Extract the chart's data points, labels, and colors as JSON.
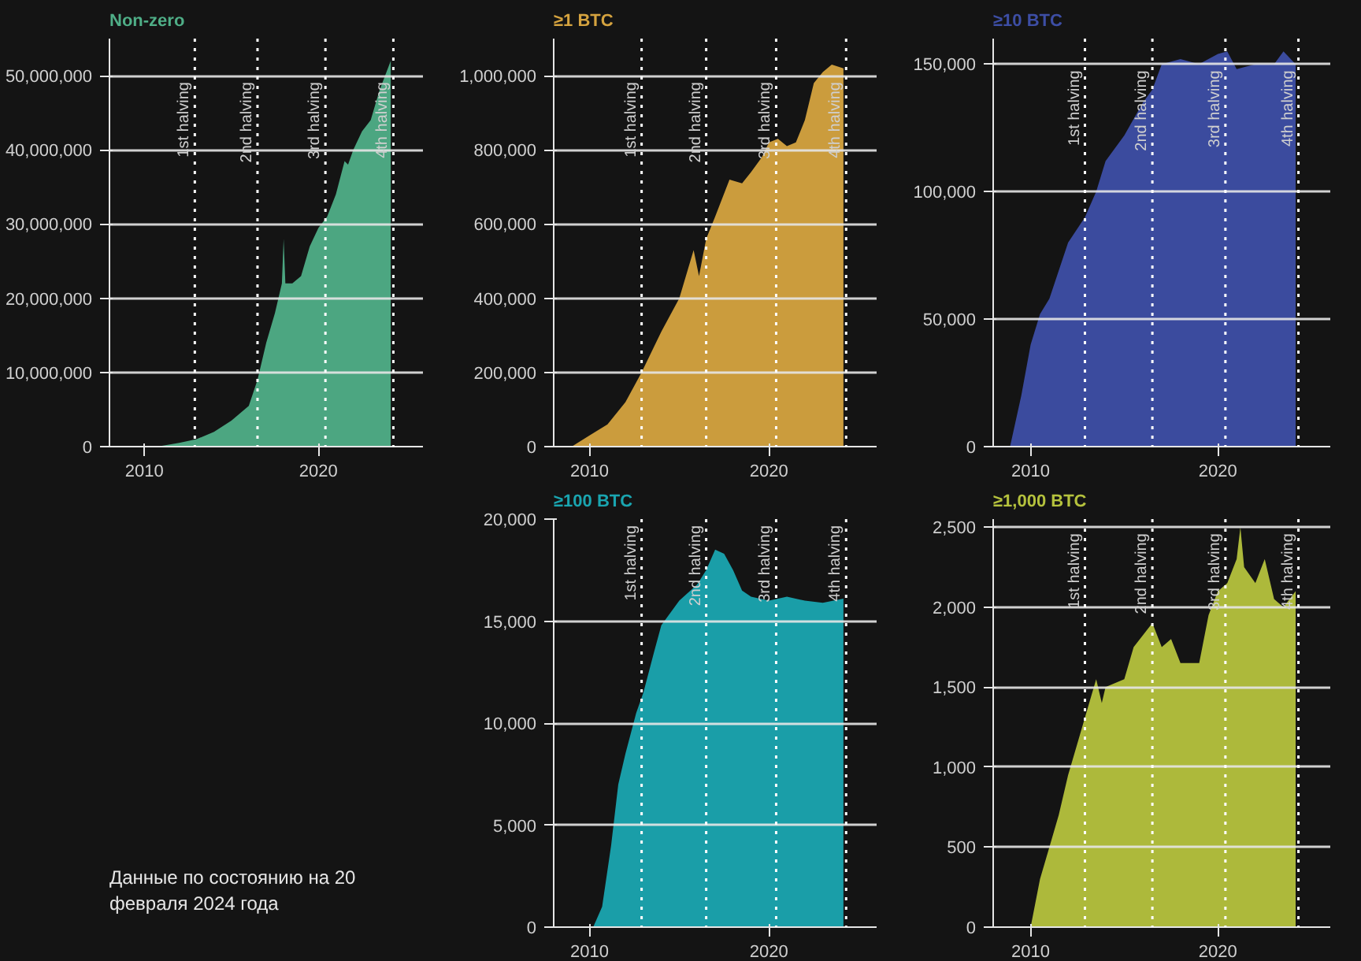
{
  "chart_data": [
    {
      "type": "area",
      "title": "Non-zero",
      "xlim": [
        2008,
        2026
      ],
      "xticks": [
        2010,
        2020
      ],
      "ylim": [
        0,
        55000000
      ],
      "yticks": [
        0,
        {
          "value": 10000000,
          "label": "10,000,000"
        },
        {
          "value": 20000000,
          "label": "20,000,000"
        },
        {
          "value": 30000000,
          "label": "30,000,000"
        },
        {
          "value": 40000000,
          "label": "40,000,000"
        },
        {
          "value": 50000000,
          "label": "50,000,000"
        }
      ],
      "grid": "y",
      "series": [
        {
          "color": "#4fae87",
          "x": [
            2009,
            2011,
            2012,
            2013,
            2014,
            2015,
            2016,
            2016.5,
            2017,
            2017.5,
            2017.9,
            2018.0,
            2018.1,
            2018.5,
            2019,
            2019.5,
            2020,
            2020.5,
            2021,
            2021.5,
            2021.7,
            2022,
            2022.5,
            2023,
            2023.5,
            2024.15
          ],
          "values": [
            0,
            100000,
            500000,
            1000000,
            2000000,
            3500000,
            5500000,
            9000000,
            14000000,
            18000000,
            22000000,
            28000000,
            22000000,
            22000000,
            23000000,
            27000000,
            29500000,
            31000000,
            34000000,
            38500000,
            38000000,
            40000000,
            42500000,
            44000000,
            48000000,
            52000000
          ]
        }
      ],
      "ref_lines": [
        {
          "axis": "x",
          "value": 2012.9,
          "label": "1st halving",
          "line_style": "dotted"
        },
        {
          "axis": "x",
          "value": 2016.5,
          "label": "2nd halving",
          "line_style": "dotted"
        },
        {
          "axis": "x",
          "value": 2020.4,
          "label": "3rd halving",
          "line_style": "dotted"
        },
        {
          "axis": "x",
          "value": 2024.3,
          "label": "4th halving",
          "line_style": "dotted"
        }
      ]
    },
    {
      "type": "area",
      "title": "≥1 BTC",
      "xlim": [
        2008,
        2026
      ],
      "xticks": [
        2010,
        2020
      ],
      "ylim": [
        0,
        1100000
      ],
      "yticks": [
        0,
        {
          "value": 200000,
          "label": "200,000"
        },
        {
          "value": 400000,
          "label": "400,000"
        },
        {
          "value": 600000,
          "label": "600,000"
        },
        {
          "value": 800000,
          "label": "800,000"
        },
        {
          "value": 1000000,
          "label": "1,000,000"
        }
      ],
      "grid": "y",
      "series": [
        {
          "color": "#d5a33f",
          "x": [
            2009,
            2010,
            2011,
            2012,
            2012.9,
            2014,
            2015,
            2015.8,
            2016.1,
            2016.5,
            2017,
            2017.8,
            2018.5,
            2019,
            2019.6,
            2020,
            2020.5,
            2021,
            2021.5,
            2022,
            2022.5,
            2023,
            2023.5,
            2024.15
          ],
          "values": [
            0,
            30000,
            60000,
            120000,
            200000,
            310000,
            400000,
            530000,
            460000,
            560000,
            620000,
            720000,
            710000,
            740000,
            780000,
            820000,
            830000,
            810000,
            820000,
            880000,
            980000,
            1010000,
            1030000,
            1020000
          ]
        }
      ],
      "ref_lines": [
        {
          "axis": "x",
          "value": 2012.9,
          "label": "1st halving",
          "line_style": "dotted"
        },
        {
          "axis": "x",
          "value": 2016.5,
          "label": "2nd halving",
          "line_style": "dotted"
        },
        {
          "axis": "x",
          "value": 2020.4,
          "label": "3rd halving",
          "line_style": "dotted"
        },
        {
          "axis": "x",
          "value": 2024.3,
          "label": "4th halving",
          "line_style": "dotted"
        }
      ]
    },
    {
      "type": "area",
      "title": "≥10 BTC",
      "xlim": [
        2008,
        2026
      ],
      "xticks": [
        2010,
        2020
      ],
      "ylim": [
        0,
        160000
      ],
      "yticks": [
        0,
        {
          "value": 50000,
          "label": "50,000"
        },
        {
          "value": 100000,
          "label": "100,000"
        },
        {
          "value": 150000,
          "label": "150,000"
        }
      ],
      "grid": "y",
      "series": [
        {
          "color": "#3d4ea5",
          "x": [
            2008.9,
            2009.5,
            2010,
            2010.5,
            2011,
            2012,
            2012.9,
            2013.5,
            2014,
            2015,
            2016,
            2016.5,
            2017,
            2018,
            2019,
            2020,
            2020.5,
            2021,
            2022,
            2023,
            2023.5,
            2024.15
          ],
          "values": [
            0,
            20000,
            40000,
            52000,
            58000,
            80000,
            90000,
            100000,
            112000,
            122000,
            135000,
            140000,
            150000,
            152000,
            150000,
            154000,
            155000,
            148000,
            150000,
            150000,
            155000,
            150000
          ]
        }
      ],
      "ref_lines": [
        {
          "axis": "x",
          "value": 2012.9,
          "label": "1st halving",
          "line_style": "dotted"
        },
        {
          "axis": "x",
          "value": 2016.5,
          "label": "2nd halving",
          "line_style": "dotted"
        },
        {
          "axis": "x",
          "value": 2020.4,
          "label": "3rd halving",
          "line_style": "dotted"
        },
        {
          "axis": "x",
          "value": 2024.3,
          "label": "4th halving",
          "line_style": "dotted"
        }
      ]
    },
    {
      "type": "area",
      "title": "≥100 BTC",
      "xlim": [
        2008,
        2026
      ],
      "xticks": [
        2010,
        2020
      ],
      "ylim": [
        0,
        20000
      ],
      "yticks": [
        0,
        {
          "value": 5000,
          "label": "5,000"
        },
        {
          "value": 10000,
          "label": "10,000"
        },
        {
          "value": 15000,
          "label": "15,000"
        },
        {
          "value": 20000,
          "label": "20,000"
        }
      ],
      "grid": "y",
      "series": [
        {
          "color": "#1aa5b0",
          "x": [
            2009,
            2010.2,
            2010.7,
            2011.2,
            2011.6,
            2012,
            2012.6,
            2013,
            2013.6,
            2014,
            2015,
            2016,
            2016.5,
            2017,
            2017.5,
            2018,
            2018.5,
            2019,
            2020,
            2021,
            2022,
            2023,
            2024.15
          ],
          "values": [
            0,
            0,
            1000,
            4000,
            7000,
            8500,
            10500,
            11500,
            13500,
            14800,
            16000,
            16800,
            17500,
            18500,
            18300,
            17500,
            16500,
            16200,
            16000,
            16200,
            16000,
            15900,
            16100
          ]
        }
      ],
      "ref_lines": [
        {
          "axis": "x",
          "value": 2012.9,
          "label": "1st halving",
          "line_style": "dotted"
        },
        {
          "axis": "x",
          "value": 2016.5,
          "label": "2nd halving",
          "line_style": "dotted"
        },
        {
          "axis": "x",
          "value": 2020.4,
          "label": "3rd halving",
          "line_style": "dotted"
        },
        {
          "axis": "x",
          "value": 2024.3,
          "label": "4th halving",
          "line_style": "dotted"
        }
      ]
    },
    {
      "type": "area",
      "title": "≥1,000 BTC",
      "xlim": [
        2008,
        2026
      ],
      "xticks": [
        2010,
        2020
      ],
      "ylim": [
        0,
        2550
      ],
      "yticks": [
        0,
        500,
        {
          "value": 1000,
          "label": "1,000"
        },
        {
          "value": 1500,
          "label": "1,500"
        },
        {
          "value": 2000,
          "label": "2,000"
        },
        {
          "value": 2500,
          "label": "2,500"
        }
      ],
      "grid": "y",
      "series": [
        {
          "color": "#b5c23d",
          "x": [
            2009,
            2010,
            2010.5,
            2011,
            2011.5,
            2012,
            2012.5,
            2013,
            2013.5,
            2013.8,
            2014,
            2015,
            2015.5,
            2016.5,
            2017,
            2017.5,
            2018,
            2019,
            2019.5,
            2020,
            2020.5,
            2021,
            2021.2,
            2021.4,
            2022,
            2022.5,
            2023,
            2023.5,
            2024.15
          ],
          "values": [
            0,
            0,
            300,
            500,
            700,
            950,
            1150,
            1350,
            1550,
            1400,
            1500,
            1550,
            1750,
            1900,
            1750,
            1800,
            1650,
            1650,
            1950,
            2100,
            2150,
            2300,
            2500,
            2250,
            2150,
            2300,
            2050,
            2000,
            2100
          ]
        }
      ],
      "ref_lines": [
        {
          "axis": "x",
          "value": 2012.9,
          "label": "1st halving",
          "line_style": "dotted"
        },
        {
          "axis": "x",
          "value": 2016.5,
          "label": "2nd halving",
          "line_style": "dotted"
        },
        {
          "axis": "x",
          "value": 2020.4,
          "label": "3rd halving",
          "line_style": "dotted"
        },
        {
          "axis": "x",
          "value": 2024.3,
          "label": "4th halving",
          "line_style": "dotted"
        }
      ]
    },
    {
      "type": "other",
      "annotations": [
        "Данные по состоянию на 20 февраля 2024 года"
      ]
    }
  ]
}
